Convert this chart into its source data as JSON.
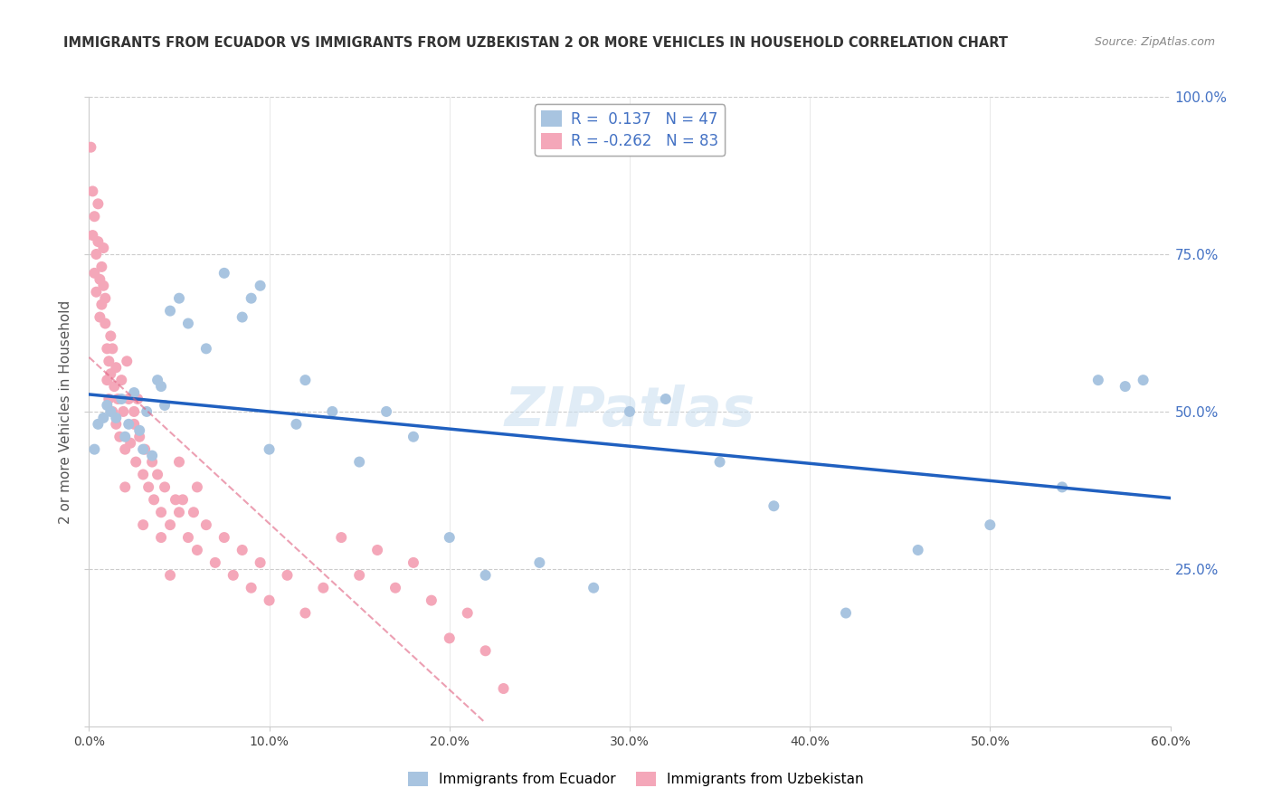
{
  "title": "IMMIGRANTS FROM ECUADOR VS IMMIGRANTS FROM UZBEKISTAN 2 OR MORE VEHICLES IN HOUSEHOLD CORRELATION CHART",
  "source": "Source: ZipAtlas.com",
  "ylabel": "2 or more Vehicles in Household",
  "legend1_label": "Immigrants from Ecuador",
  "legend2_label": "Immigrants from Uzbekistan",
  "r_ecuador": 0.137,
  "n_ecuador": 47,
  "r_uzbekistan": -0.262,
  "n_uzbekistan": 83,
  "xlim": [
    0.0,
    0.6
  ],
  "ylim": [
    0.0,
    1.0
  ],
  "color_ecuador": "#a8c4e0",
  "color_uzbekistan": "#f4a7b9",
  "trendline_ecuador_color": "#2060c0",
  "trendline_uzbekistan_color": "#e06080",
  "watermark": "ZIPatlas",
  "ecuador_x": [
    0.003,
    0.005,
    0.008,
    0.01,
    0.012,
    0.015,
    0.018,
    0.02,
    0.022,
    0.025,
    0.028,
    0.03,
    0.032,
    0.035,
    0.038,
    0.04,
    0.042,
    0.045,
    0.05,
    0.055,
    0.065,
    0.075,
    0.085,
    0.09,
    0.095,
    0.1,
    0.115,
    0.12,
    0.135,
    0.15,
    0.165,
    0.18,
    0.2,
    0.22,
    0.25,
    0.28,
    0.3,
    0.32,
    0.35,
    0.38,
    0.42,
    0.46,
    0.5,
    0.54,
    0.56,
    0.575,
    0.585
  ],
  "ecuador_y": [
    0.44,
    0.48,
    0.49,
    0.51,
    0.5,
    0.49,
    0.52,
    0.46,
    0.48,
    0.53,
    0.47,
    0.44,
    0.5,
    0.43,
    0.55,
    0.54,
    0.51,
    0.66,
    0.68,
    0.64,
    0.6,
    0.72,
    0.65,
    0.68,
    0.7,
    0.44,
    0.48,
    0.55,
    0.5,
    0.42,
    0.5,
    0.46,
    0.3,
    0.24,
    0.26,
    0.22,
    0.5,
    0.52,
    0.42,
    0.35,
    0.18,
    0.28,
    0.32,
    0.38,
    0.55,
    0.54,
    0.55
  ],
  "uzbekistan_x": [
    0.001,
    0.002,
    0.002,
    0.003,
    0.003,
    0.004,
    0.004,
    0.005,
    0.005,
    0.006,
    0.006,
    0.007,
    0.007,
    0.008,
    0.008,
    0.009,
    0.009,
    0.01,
    0.01,
    0.011,
    0.011,
    0.012,
    0.012,
    0.013,
    0.013,
    0.014,
    0.015,
    0.015,
    0.016,
    0.017,
    0.018,
    0.019,
    0.02,
    0.021,
    0.022,
    0.023,
    0.025,
    0.026,
    0.027,
    0.028,
    0.03,
    0.031,
    0.033,
    0.035,
    0.036,
    0.038,
    0.04,
    0.042,
    0.045,
    0.048,
    0.05,
    0.052,
    0.055,
    0.058,
    0.06,
    0.065,
    0.07,
    0.075,
    0.08,
    0.085,
    0.09,
    0.095,
    0.1,
    0.11,
    0.12,
    0.13,
    0.14,
    0.15,
    0.16,
    0.17,
    0.18,
    0.19,
    0.2,
    0.21,
    0.22,
    0.23,
    0.02,
    0.025,
    0.03,
    0.04,
    0.045,
    0.05,
    0.06
  ],
  "uzbekistan_y": [
    0.92,
    0.85,
    0.78,
    0.72,
    0.81,
    0.75,
    0.69,
    0.83,
    0.77,
    0.71,
    0.65,
    0.73,
    0.67,
    0.76,
    0.7,
    0.64,
    0.68,
    0.6,
    0.55,
    0.58,
    0.52,
    0.62,
    0.56,
    0.5,
    0.6,
    0.54,
    0.57,
    0.48,
    0.52,
    0.46,
    0.55,
    0.5,
    0.44,
    0.58,
    0.52,
    0.45,
    0.48,
    0.42,
    0.52,
    0.46,
    0.4,
    0.44,
    0.38,
    0.42,
    0.36,
    0.4,
    0.34,
    0.38,
    0.32,
    0.36,
    0.42,
    0.36,
    0.3,
    0.34,
    0.28,
    0.32,
    0.26,
    0.3,
    0.24,
    0.28,
    0.22,
    0.26,
    0.2,
    0.24,
    0.18,
    0.22,
    0.3,
    0.24,
    0.28,
    0.22,
    0.26,
    0.2,
    0.14,
    0.18,
    0.12,
    0.06,
    0.38,
    0.5,
    0.32,
    0.3,
    0.24,
    0.34,
    0.38
  ]
}
